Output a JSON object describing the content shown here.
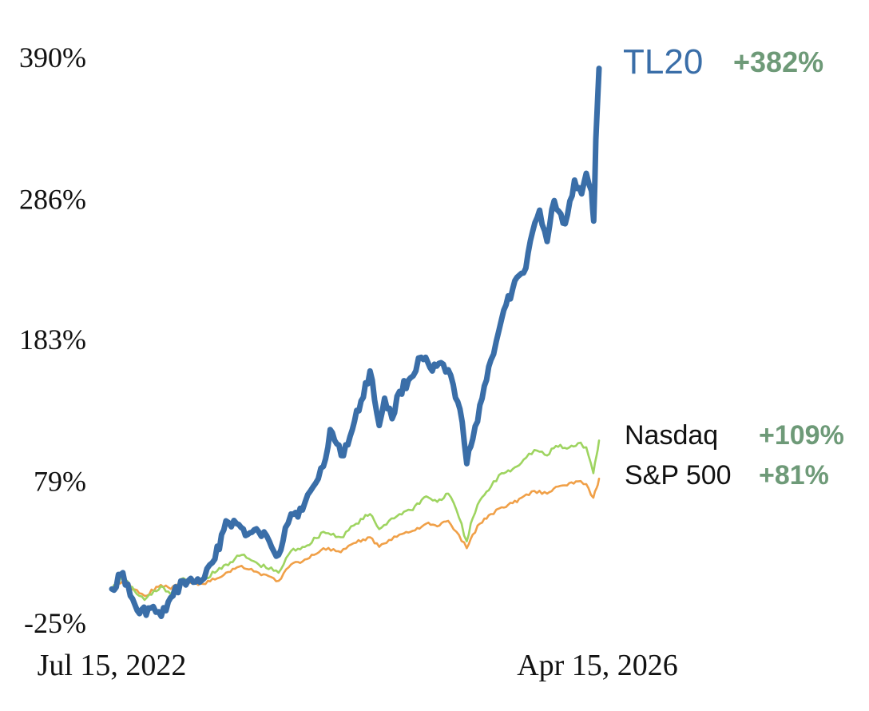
{
  "chart_data": {
    "type": "line",
    "title": "",
    "xlabel": "",
    "ylabel": "",
    "x_range": [
      "2022-07-15",
      "2026-04-15"
    ],
    "x_tick_labels": [
      "Jul 15, 2022",
      "Apr 15, 2026"
    ],
    "y_ticks": [
      -25,
      79,
      183,
      286,
      390
    ],
    "y_tick_labels": [
      "-25%",
      "79%",
      "183%",
      "286%",
      "390%"
    ],
    "ylim": [
      -25,
      390
    ],
    "grid": false,
    "legend": "direct labels at right end of lines",
    "change_color": "#6e9a78",
    "series": [
      {
        "name": "TL20",
        "change_label": "+382%",
        "color": "#3a6ea8",
        "points": [
          [
            "2022-07-15",
            0
          ],
          [
            "2022-08-15",
            12
          ],
          [
            "2022-09-05",
            -5
          ],
          [
            "2022-10-01",
            -18
          ],
          [
            "2022-11-01",
            -14
          ],
          [
            "2022-12-01",
            -20
          ],
          [
            "2023-01-03",
            -5
          ],
          [
            "2023-02-01",
            6
          ],
          [
            "2023-03-01",
            5
          ],
          [
            "2023-04-01",
            8
          ],
          [
            "2023-05-01",
            22
          ],
          [
            "2023-06-01",
            50
          ],
          [
            "2023-07-01",
            48
          ],
          [
            "2023-08-01",
            40
          ],
          [
            "2023-09-01",
            42
          ],
          [
            "2023-10-01",
            35
          ],
          [
            "2023-10-27",
            25
          ],
          [
            "2023-11-15",
            45
          ],
          [
            "2023-12-01",
            55
          ],
          [
            "2024-01-02",
            58
          ],
          [
            "2024-02-01",
            75
          ],
          [
            "2024-03-01",
            90
          ],
          [
            "2024-03-20",
            117
          ],
          [
            "2024-04-20",
            98
          ],
          [
            "2024-05-15",
            112
          ],
          [
            "2024-06-15",
            138
          ],
          [
            "2024-07-10",
            160
          ],
          [
            "2024-08-05",
            120
          ],
          [
            "2024-08-20",
            140
          ],
          [
            "2024-09-10",
            125
          ],
          [
            "2024-10-01",
            145
          ],
          [
            "2024-11-01",
            155
          ],
          [
            "2024-12-01",
            170
          ],
          [
            "2025-01-01",
            160
          ],
          [
            "2025-02-01",
            165
          ],
          [
            "2025-03-01",
            150
          ],
          [
            "2025-03-20",
            132
          ],
          [
            "2025-04-08",
            92
          ],
          [
            "2025-04-25",
            110
          ],
          [
            "2025-05-15",
            135
          ],
          [
            "2025-06-15",
            168
          ],
          [
            "2025-07-15",
            198
          ],
          [
            "2025-08-15",
            220
          ],
          [
            "2025-09-15",
            232
          ],
          [
            "2025-10-10",
            262
          ],
          [
            "2025-10-30",
            278
          ],
          [
            "2025-11-20",
            255
          ],
          [
            "2025-12-10",
            285
          ],
          [
            "2026-01-10",
            268
          ],
          [
            "2026-02-05",
            300
          ],
          [
            "2026-02-25",
            290
          ],
          [
            "2026-03-10",
            305
          ],
          [
            "2026-03-25",
            292
          ],
          [
            "2026-03-31",
            270
          ],
          [
            "2026-04-06",
            330
          ],
          [
            "2026-04-15",
            382
          ]
        ]
      },
      {
        "name": "Nasdaq",
        "change_label": "+109%",
        "color": "#9ed460",
        "points": [
          [
            "2022-07-15",
            0
          ],
          [
            "2022-08-15",
            8
          ],
          [
            "2022-09-30",
            -5
          ],
          [
            "2022-10-15",
            -8
          ],
          [
            "2022-11-30",
            2
          ],
          [
            "2022-12-28",
            -4
          ],
          [
            "2023-02-01",
            8
          ],
          [
            "2023-03-15",
            5
          ],
          [
            "2023-05-01",
            12
          ],
          [
            "2023-06-01",
            18
          ],
          [
            "2023-07-15",
            25
          ],
          [
            "2023-09-01",
            18
          ],
          [
            "2023-10-27",
            12
          ],
          [
            "2023-12-01",
            28
          ],
          [
            "2024-01-15",
            32
          ],
          [
            "2024-03-01",
            42
          ],
          [
            "2024-04-19",
            38
          ],
          [
            "2024-06-01",
            48
          ],
          [
            "2024-07-10",
            55
          ],
          [
            "2024-08-05",
            44
          ],
          [
            "2024-09-01",
            50
          ],
          [
            "2024-10-01",
            55
          ],
          [
            "2024-11-01",
            58
          ],
          [
            "2024-12-15",
            68
          ],
          [
            "2025-01-15",
            64
          ],
          [
            "2025-02-15",
            70
          ],
          [
            "2025-03-10",
            58
          ],
          [
            "2025-04-08",
            35
          ],
          [
            "2025-04-25",
            52
          ],
          [
            "2025-05-15",
            65
          ],
          [
            "2025-06-15",
            75
          ],
          [
            "2025-07-15",
            85
          ],
          [
            "2025-08-15",
            88
          ],
          [
            "2025-09-15",
            95
          ],
          [
            "2025-10-15",
            102
          ],
          [
            "2025-11-20",
            98
          ],
          [
            "2025-12-15",
            105
          ],
          [
            "2026-01-15",
            103
          ],
          [
            "2026-02-15",
            107
          ],
          [
            "2026-03-10",
            104
          ],
          [
            "2026-03-30",
            85
          ],
          [
            "2026-04-08",
            98
          ],
          [
            "2026-04-15",
            109
          ]
        ]
      },
      {
        "name": "S&P 500",
        "change_label": "+81%",
        "color": "#f0a048",
        "points": [
          [
            "2022-07-15",
            0
          ],
          [
            "2022-08-15",
            6
          ],
          [
            "2022-09-30",
            -3
          ],
          [
            "2022-10-15",
            -5
          ],
          [
            "2022-11-30",
            3
          ],
          [
            "2022-12-28",
            0
          ],
          [
            "2023-02-01",
            6
          ],
          [
            "2023-03-15",
            3
          ],
          [
            "2023-05-01",
            7
          ],
          [
            "2023-06-01",
            12
          ],
          [
            "2023-07-15",
            17
          ],
          [
            "2023-09-01",
            12
          ],
          [
            "2023-10-27",
            6
          ],
          [
            "2023-12-01",
            18
          ],
          [
            "2024-01-15",
            22
          ],
          [
            "2024-03-01",
            30
          ],
          [
            "2024-04-19",
            27
          ],
          [
            "2024-06-01",
            34
          ],
          [
            "2024-07-10",
            38
          ],
          [
            "2024-08-05",
            31
          ],
          [
            "2024-09-01",
            36
          ],
          [
            "2024-10-01",
            40
          ],
          [
            "2024-11-01",
            42
          ],
          [
            "2024-12-15",
            48
          ],
          [
            "2025-01-15",
            46
          ],
          [
            "2025-02-15",
            50
          ],
          [
            "2025-03-10",
            42
          ],
          [
            "2025-04-08",
            30
          ],
          [
            "2025-04-25",
            40
          ],
          [
            "2025-05-15",
            48
          ],
          [
            "2025-06-15",
            55
          ],
          [
            "2025-07-15",
            60
          ],
          [
            "2025-08-15",
            63
          ],
          [
            "2025-09-15",
            68
          ],
          [
            "2025-10-15",
            72
          ],
          [
            "2025-11-20",
            70
          ],
          [
            "2025-12-15",
            75
          ],
          [
            "2026-01-15",
            76
          ],
          [
            "2026-02-15",
            79
          ],
          [
            "2026-03-10",
            77
          ],
          [
            "2026-03-30",
            67
          ],
          [
            "2026-04-08",
            74
          ],
          [
            "2026-04-15",
            81
          ]
        ]
      }
    ]
  }
}
